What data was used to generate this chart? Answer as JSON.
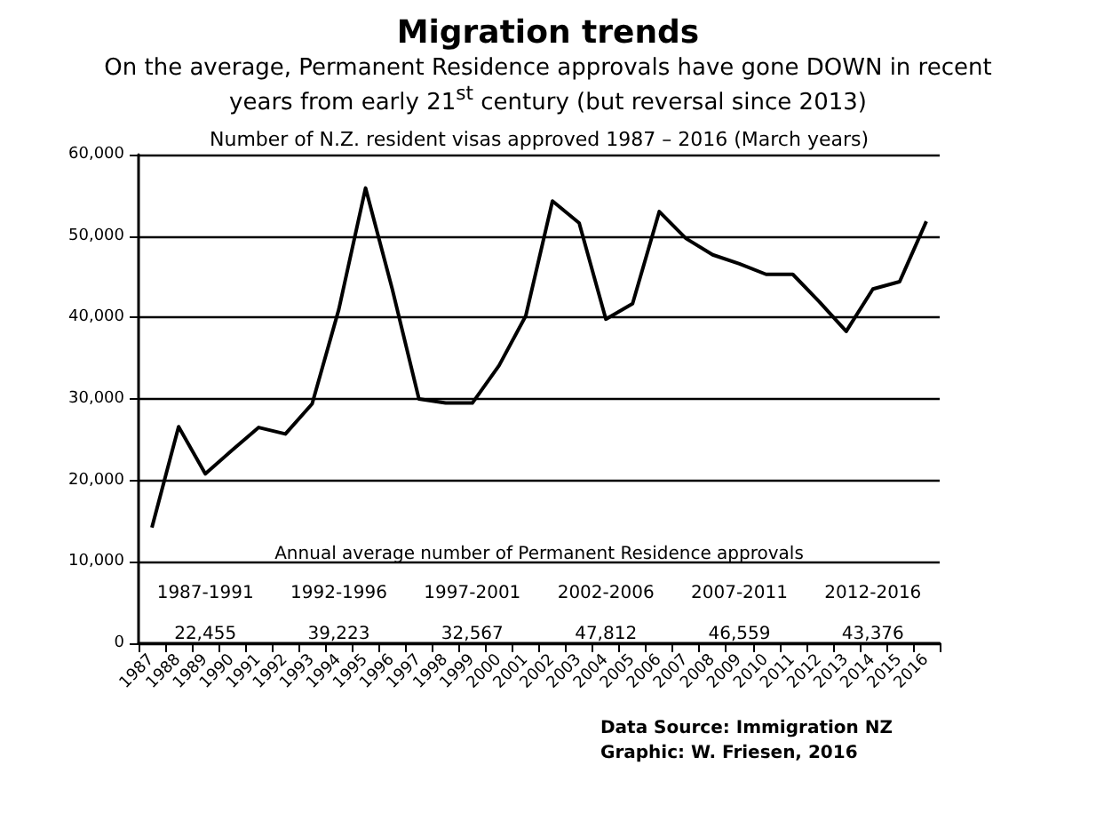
{
  "chart_data": {
    "type": "line",
    "title": "Migration trends",
    "subtitle": "On the average, Permanent Residence approvals have gone DOWN in recent years from early 21$^{st}$ century  (but reversal since 2013)",
    "categories": [
      "1987",
      "1988",
      "1989",
      "1990",
      "1991",
      "1992",
      "1993",
      "1994",
      "1995",
      "1996",
      "1997",
      "1998",
      "1999",
      "2000",
      "2001",
      "2002",
      "2003",
      "2004",
      "2005",
      "2006",
      "2007",
      "2008",
      "2009",
      "2010",
      "2011",
      "2012",
      "2013",
      "2014",
      "2015",
      "2016"
    ],
    "series": [
      {
        "color": "#000000",
        "values": [
          14200,
          26600,
          20800,
          23700,
          26500,
          25700,
          29400,
          41000,
          55900,
          43500,
          30000,
          29500,
          29500,
          34100,
          40200,
          54300,
          51600,
          39800,
          41700,
          53000,
          49700,
          47700,
          46600,
          45300,
          45300,
          41900,
          38300,
          43500,
          44400,
          51800
        ]
      }
    ],
    "ylim": [
      0,
      60000
    ],
    "yticks": [
      {
        "value": 0,
        "label": "0"
      },
      {
        "value": 10000,
        "label": "10,000"
      },
      {
        "value": 20000,
        "label": "20,000"
      },
      {
        "value": 30000,
        "label": "30,000"
      },
      {
        "value": 40000,
        "label": "40,000"
      },
      {
        "value": 50000,
        "label": "50,000"
      },
      {
        "value": 60000,
        "label": "60,000"
      }
    ],
    "grid": "y",
    "marker": "none",
    "line_style": "solid",
    "annotations": [
      "Number of N.Z. resident visas approved 1987 – 2016 (March years)",
      "Annual average number of Permanent Residence approvals",
      "1987-1991",
      "22,455",
      "1992-1996",
      "39,223",
      "1997-2001",
      "32,567",
      "2002-2006",
      "47,812",
      "2007-2011",
      "46,559",
      "2012-2016",
      "43,376",
      "Data Source: Immigration NZ",
      "Graphic: W. Friesen, 2016"
    ]
  }
}
